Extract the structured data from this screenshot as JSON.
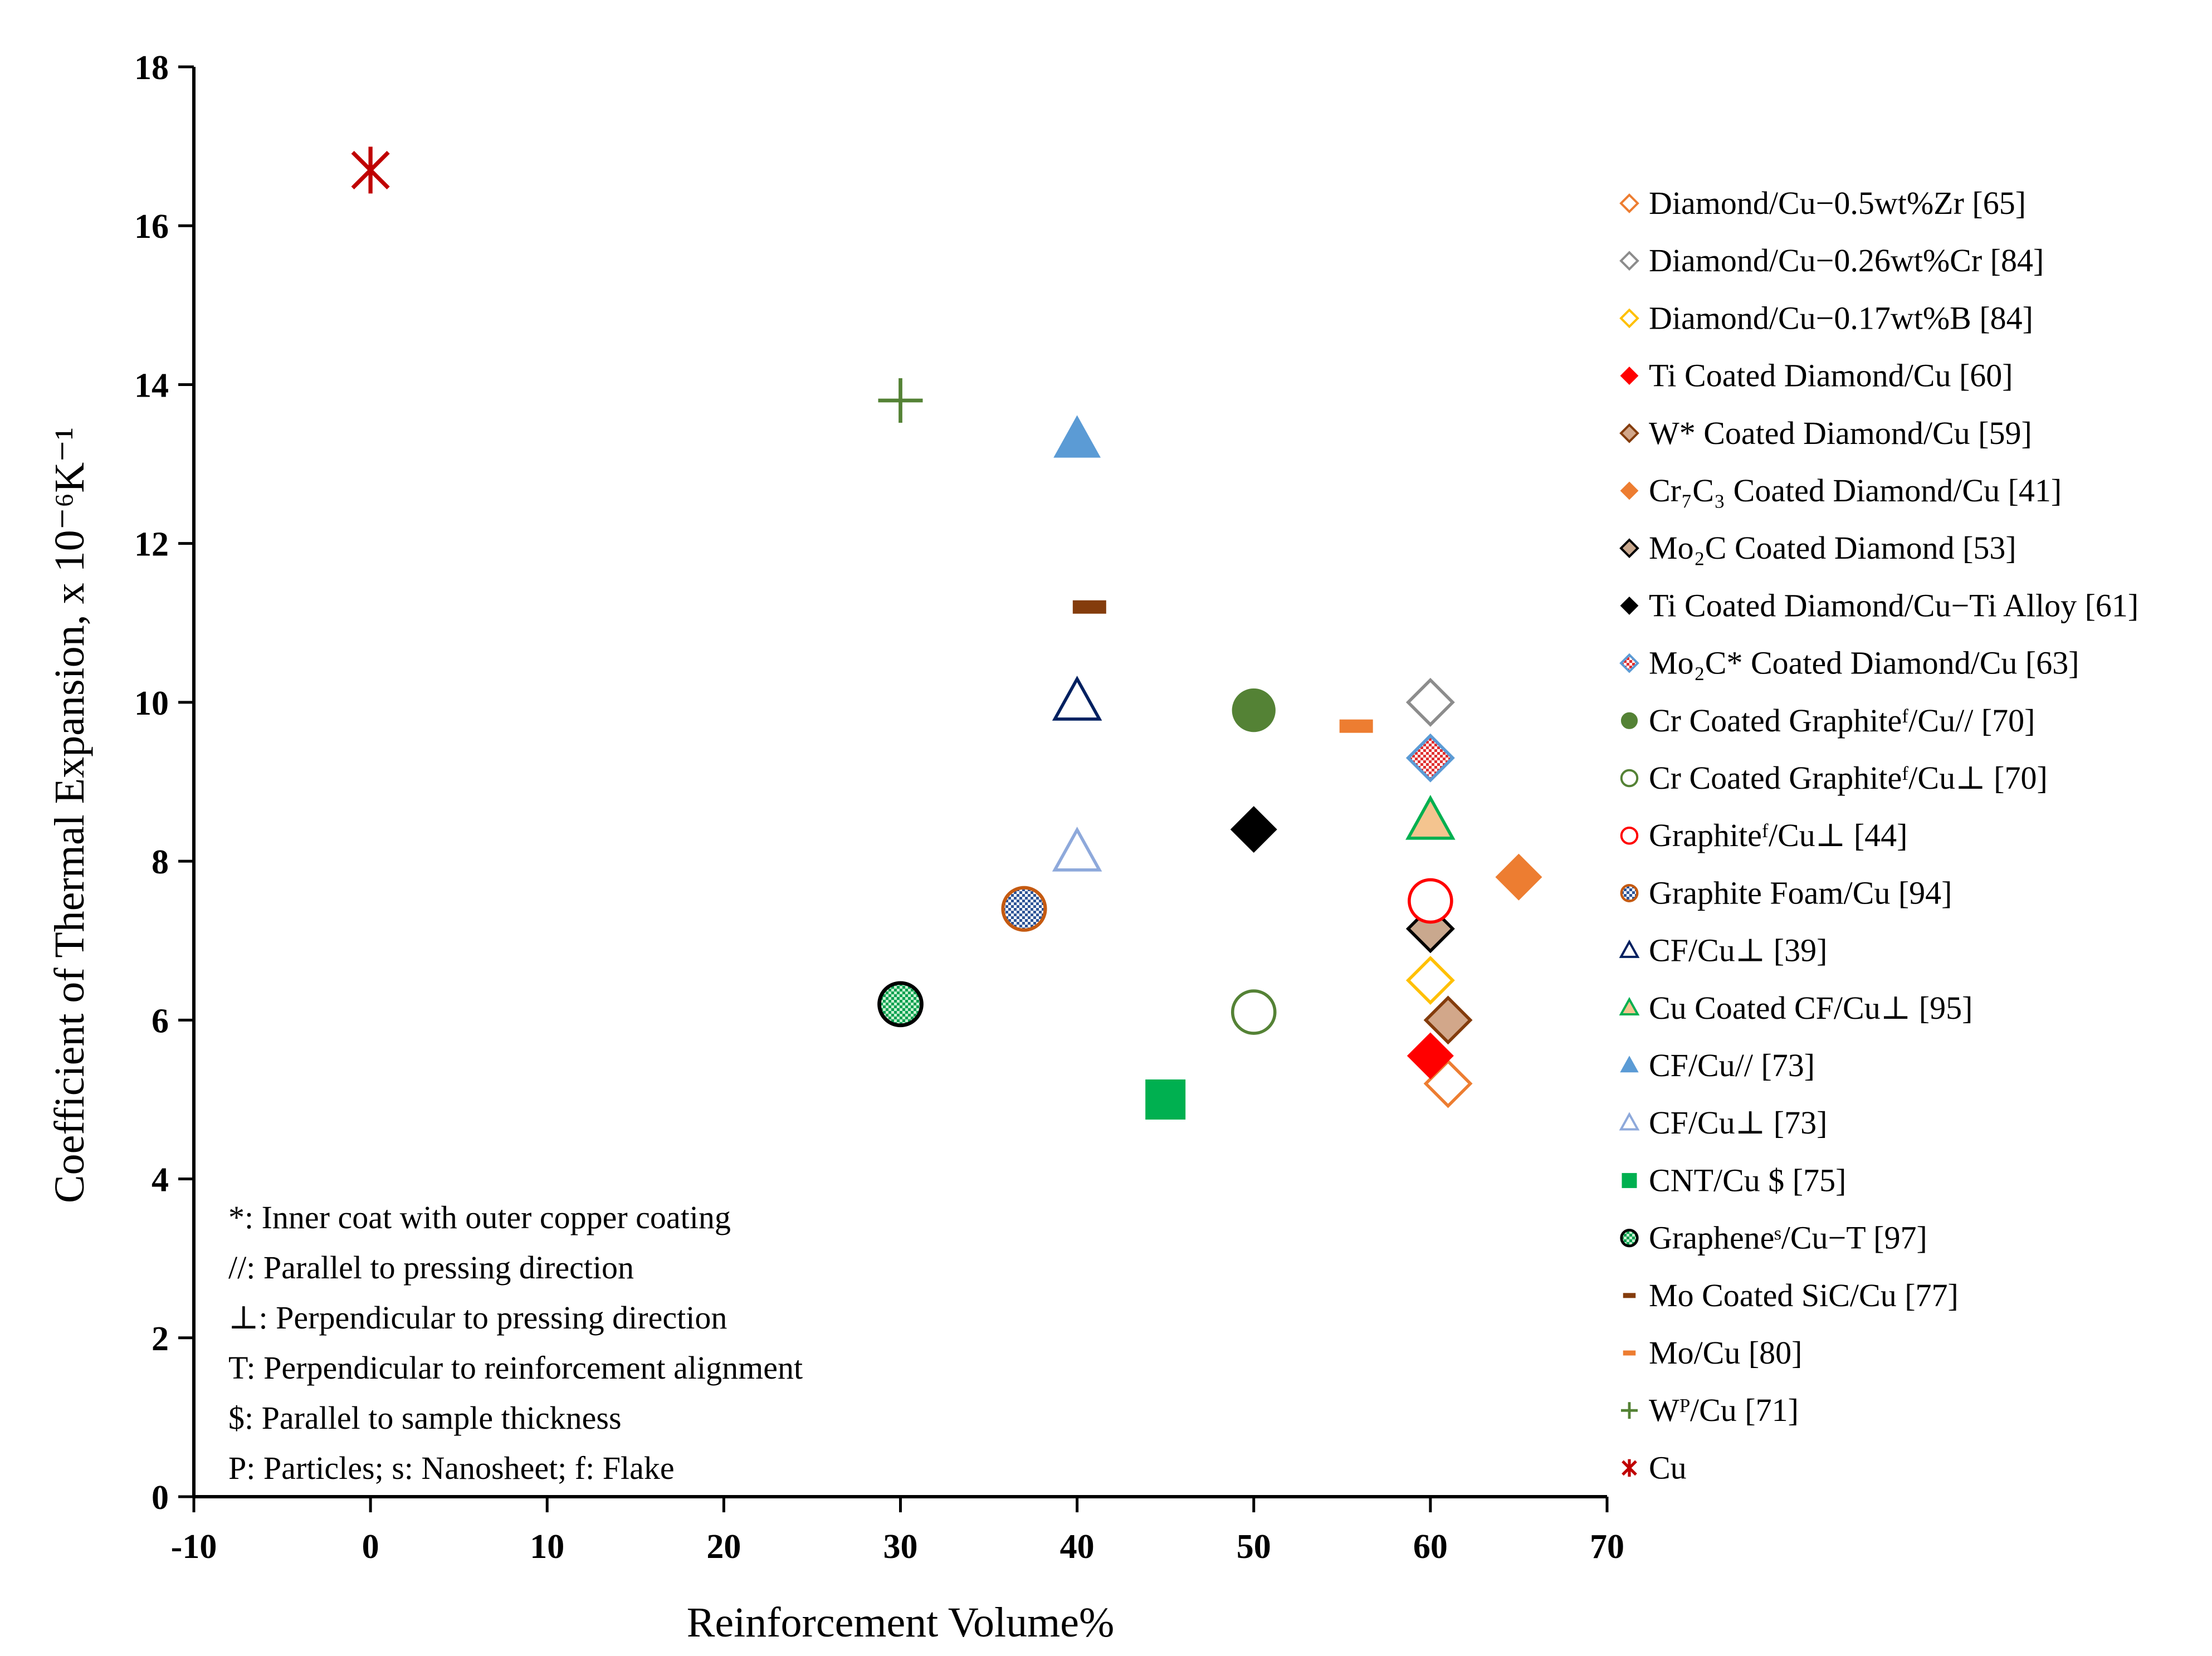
{
  "chart_data": {
    "type": "scatter",
    "title": "",
    "xlabel": "Reinforcement Volume%",
    "ylabel": "Coefficient of Thermal Expansion, x 10⁻⁶K⁻¹",
    "xlim": [
      -10,
      70
    ],
    "ylim": [
      0,
      18
    ],
    "xticks": [
      -10,
      0,
      10,
      20,
      30,
      40,
      50,
      60,
      70
    ],
    "yticks": [
      0,
      2,
      4,
      6,
      8,
      10,
      12,
      14,
      16,
      18
    ],
    "grid": false,
    "legend_position": "right",
    "series": [
      {
        "name": "Diamond/Cu−0.5wt%Zr [65]",
        "marker": "diamond-open",
        "color": "#ED7D31",
        "x": [
          61
        ],
        "y": [
          5.2
        ]
      },
      {
        "name": "Diamond/Cu−0.26wt%Cr [84]",
        "marker": "diamond-open",
        "color": "#8C8C8C",
        "x": [
          60
        ],
        "y": [
          10.0
        ]
      },
      {
        "name": "Diamond/Cu−0.17wt%B [84]",
        "marker": "diamond-open",
        "color": "#FFC000",
        "x": [
          60
        ],
        "y": [
          6.5
        ]
      },
      {
        "name": "Ti Coated Diamond/Cu [60]",
        "marker": "diamond",
        "color": "#FF0000",
        "x": [
          60
        ],
        "y": [
          5.55
        ]
      },
      {
        "name": "W* Coated Diamond/Cu [59]",
        "marker": "diamond-brown-fill",
        "color": "#843C0C",
        "x": [
          61
        ],
        "y": [
          6.0
        ]
      },
      {
        "name": "Cr₇C₃ Coated Diamond/Cu [41]",
        "marker": "diamond",
        "color": "#ED7D31",
        "x": [
          65
        ],
        "y": [
          7.8
        ]
      },
      {
        "name": "Mo₂C Coated Diamond [53]",
        "marker": "diamond-tan-fill",
        "color": "#000000",
        "x": [
          60
        ],
        "y": [
          7.15
        ]
      },
      {
        "name": "Ti Coated Diamond/Cu−Ti Alloy [61]",
        "marker": "diamond",
        "color": "#000000",
        "x": [
          50
        ],
        "y": [
          8.4
        ]
      },
      {
        "name": "Mo₂C* Coated Diamond/Cu [63]",
        "marker": "diamond-pattern",
        "color": "#5B9BD5",
        "x": [
          60
        ],
        "y": [
          9.3
        ]
      },
      {
        "name": "Cr Coated Graphiteᶠ/Cu// [70]",
        "marker": "circle",
        "color": "#548235",
        "x": [
          50
        ],
        "y": [
          9.9
        ]
      },
      {
        "name": "Cr Coated Graphiteᶠ/Cu⊥ [70]",
        "marker": "circle-open",
        "color": "#548235",
        "x": [
          50
        ],
        "y": [
          6.1
        ]
      },
      {
        "name": "Graphiteᶠ/Cu⊥ [44]",
        "marker": "circle-open",
        "color": "#FF0000",
        "x": [
          60
        ],
        "y": [
          7.5
        ]
      },
      {
        "name": "Graphite Foam/Cu [94]",
        "marker": "circle-pattern",
        "color": "#C55A11",
        "x": [
          37
        ],
        "y": [
          7.4
        ]
      },
      {
        "name": "CF/Cu⊥ [39]",
        "marker": "triangle-open",
        "color": "#002060",
        "x": [
          40
        ],
        "y": [
          10.0
        ]
      },
      {
        "name": "Cu Coated CF/Cu⊥ [95]",
        "marker": "triangle-tan-fill",
        "color": "#00B050",
        "x": [
          60
        ],
        "y": [
          8.5
        ]
      },
      {
        "name": "CF/Cu// [73]",
        "marker": "triangle",
        "color": "#5B9BD5",
        "x": [
          40
        ],
        "y": [
          13.3
        ]
      },
      {
        "name": "CF/Cu⊥ [73]",
        "marker": "triangle-open",
        "color": "#8EA9DB",
        "x": [
          40
        ],
        "y": [
          8.1
        ]
      },
      {
        "name": "CNT/Cu $ [75]",
        "marker": "square",
        "color": "#00B050",
        "x": [
          45
        ],
        "y": [
          5.0
        ]
      },
      {
        "name": "Grapheneˢ/Cu−T [97]",
        "marker": "circle-green-pattern",
        "color": "#000000",
        "x": [
          30
        ],
        "y": [
          6.2
        ]
      },
      {
        "name": "Mo Coated SiC/Cu [77]",
        "marker": "dash",
        "color": "#843C0C",
        "x": [
          40.7
        ],
        "y": [
          11.2
        ]
      },
      {
        "name": "Mo/Cu [80]",
        "marker": "dash",
        "color": "#ED7D31",
        "x": [
          55.8
        ],
        "y": [
          9.7
        ]
      },
      {
        "name": "Wᴾ/Cu [71]",
        "marker": "plus",
        "color": "#548235",
        "x": [
          30
        ],
        "y": [
          13.8
        ]
      },
      {
        "name": "Cu",
        "marker": "star",
        "color": "#C00000",
        "x": [
          0
        ],
        "y": [
          16.7
        ]
      }
    ],
    "notes": [
      "*: Inner coat with outer copper coating",
      "//: Parallel to pressing direction",
      "⊥: Perpendicular to pressing direction",
      "T: Perpendicular to reinforcement alignment",
      "$: Parallel to sample thickness",
      "P: Particles; s: Nanosheet; f: Flake"
    ]
  }
}
